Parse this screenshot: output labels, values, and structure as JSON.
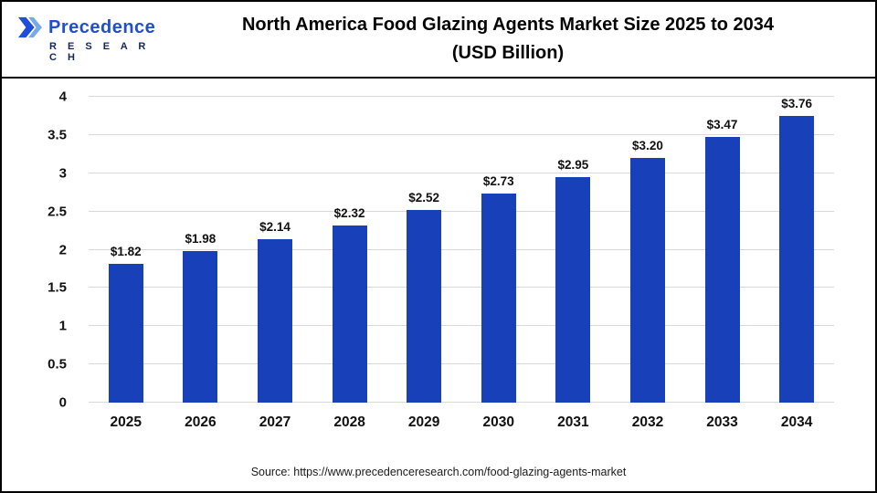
{
  "header": {
    "logo_line1": "Precedence",
    "logo_line2": "R E S E A R C H",
    "title_line1": "North America Food Glazing Agents Market Size 2025 to 2034",
    "title_line2": "(USD Billion)"
  },
  "chart_data": {
    "type": "bar",
    "title": "North America Food Glazing Agents Market Size 2025 to 2034 (USD Billion)",
    "categories": [
      "2025",
      "2026",
      "2027",
      "2028",
      "2029",
      "2030",
      "2031",
      "2032",
      "2033",
      "2034"
    ],
    "values": [
      1.82,
      1.98,
      2.14,
      2.32,
      2.52,
      2.73,
      2.95,
      3.2,
      3.47,
      3.76
    ],
    "labels": [
      "$1.82",
      "$1.98",
      "$2.14",
      "$2.32",
      "$2.52",
      "$2.73",
      "$2.95",
      "$3.20",
      "$3.47",
      "$3.76"
    ],
    "xlabel": "",
    "ylabel": "",
    "ylim": [
      0,
      4
    ],
    "yticks": [
      0,
      0.5,
      1,
      1.5,
      2,
      2.5,
      3,
      3.5,
      4
    ],
    "bar_color": "#1840b8",
    "grid": true,
    "legend_position": "none"
  },
  "footer": {
    "source": "Source: https://www.precedenceresearch.com/food-glazing-agents-market"
  }
}
